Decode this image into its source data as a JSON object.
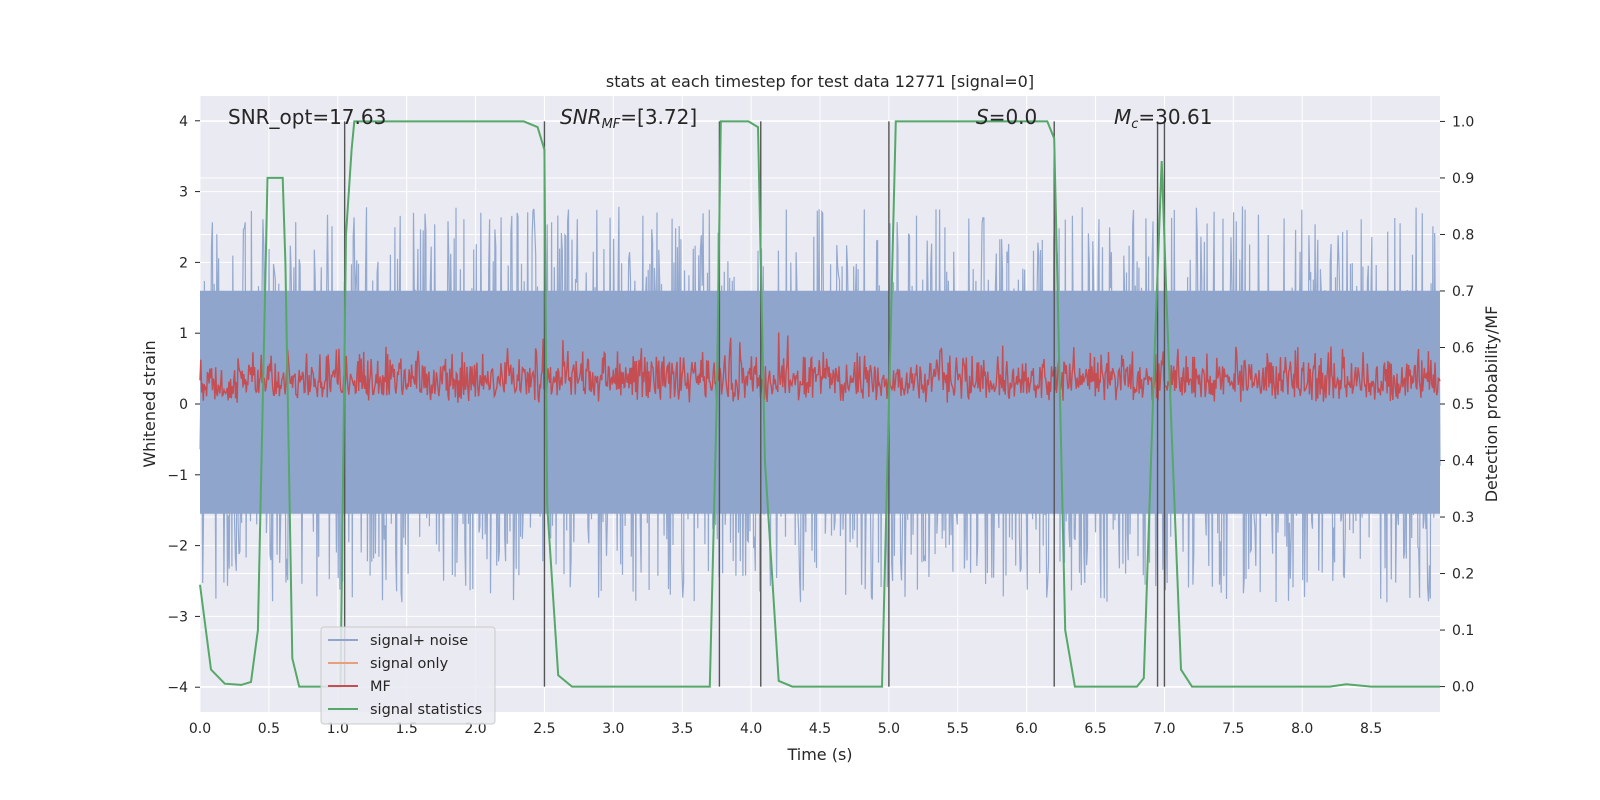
{
  "chart_data": {
    "type": "line",
    "title": "stats at each timestep for test data 12771 [signal=0]",
    "xlabel": "Time (s)",
    "ylabel": "Whitened strain",
    "ylabel_right": "Detection probability/MF",
    "xlim": [
      0,
      9.0
    ],
    "ylim": [
      -4.35,
      4.35
    ],
    "ylim_right": [
      -0.045,
      1.045
    ],
    "xticks": [
      "0.0",
      "0.5",
      "1.0",
      "1.5",
      "2.0",
      "2.5",
      "3.0",
      "3.5",
      "4.0",
      "4.5",
      "5.0",
      "5.5",
      "6.0",
      "6.5",
      "7.0",
      "7.5",
      "8.0",
      "8.5"
    ],
    "yticks": [
      "4",
      "3",
      "2",
      "1",
      "0",
      "−1",
      "−2",
      "−3",
      "−4"
    ],
    "yticks_right": [
      "1.0",
      "0.9",
      "0.8",
      "0.7",
      "0.6",
      "0.5",
      "0.4",
      "0.3",
      "0.2",
      "0.1",
      "0.0"
    ],
    "grid": true,
    "legend_position": "lower-left",
    "annotations": {
      "snr_opt": "SNR_opt=17.63",
      "snr_mf_sym": "SNR",
      "snr_mf_sub": "MF",
      "snr_mf_rest": "=[3.72]",
      "s_sym": "S",
      "s_rest": "=0.0",
      "mc_sym": "M",
      "mc_sub": "c",
      "mc_rest": "=30.61"
    },
    "series": [
      {
        "name": "signal+ noise",
        "color": "#8fa5cc",
        "description_range": [
          -3.8,
          3.8
        ]
      },
      {
        "name": "signal only",
        "color": "#e8a07a"
      },
      {
        "name": "MF",
        "color": "#c44e52",
        "description_range": [
          0.5,
          0.63
        ]
      },
      {
        "name": "signal statistics",
        "color": "#55a868",
        "x": [
          0.0,
          0.08,
          0.18,
          0.3,
          0.37,
          0.42,
          0.49,
          0.5,
          0.55,
          0.6,
          0.62,
          0.67,
          0.72,
          1.02,
          1.06,
          1.1,
          1.12,
          2.35,
          2.45,
          2.5,
          2.52,
          2.6,
          2.7,
          3.7,
          3.75,
          3.78,
          3.8,
          3.98,
          4.05,
          4.1,
          4.2,
          4.3,
          4.95,
          5.0,
          5.05,
          5.07,
          6.15,
          6.2,
          6.28,
          6.35,
          6.8,
          6.85,
          6.93,
          6.98,
          7.02,
          7.12,
          7.2,
          8.2,
          8.32,
          8.5,
          9.0
        ],
        "y": [
          0.18,
          0.03,
          0.005,
          0.003,
          0.008,
          0.1,
          0.9,
          0.9,
          0.9,
          0.9,
          0.75,
          0.05,
          0.0,
          0.0,
          0.8,
          0.95,
          1.0,
          1.0,
          0.99,
          0.95,
          0.32,
          0.02,
          0.0,
          0.0,
          0.5,
          1.0,
          1.0,
          1.0,
          0.99,
          0.4,
          0.01,
          0.0,
          0.0,
          0.5,
          1.0,
          1.0,
          1.0,
          0.97,
          0.1,
          0.0,
          0.0,
          0.015,
          0.6,
          0.93,
          0.65,
          0.03,
          0.0,
          0.0,
          0.004,
          0.0,
          0.0
        ]
      }
    ],
    "vertical_markers": [
      1.05,
      2.5,
      3.77,
      4.07,
      5.0,
      6.2,
      6.95,
      7.0
    ]
  }
}
